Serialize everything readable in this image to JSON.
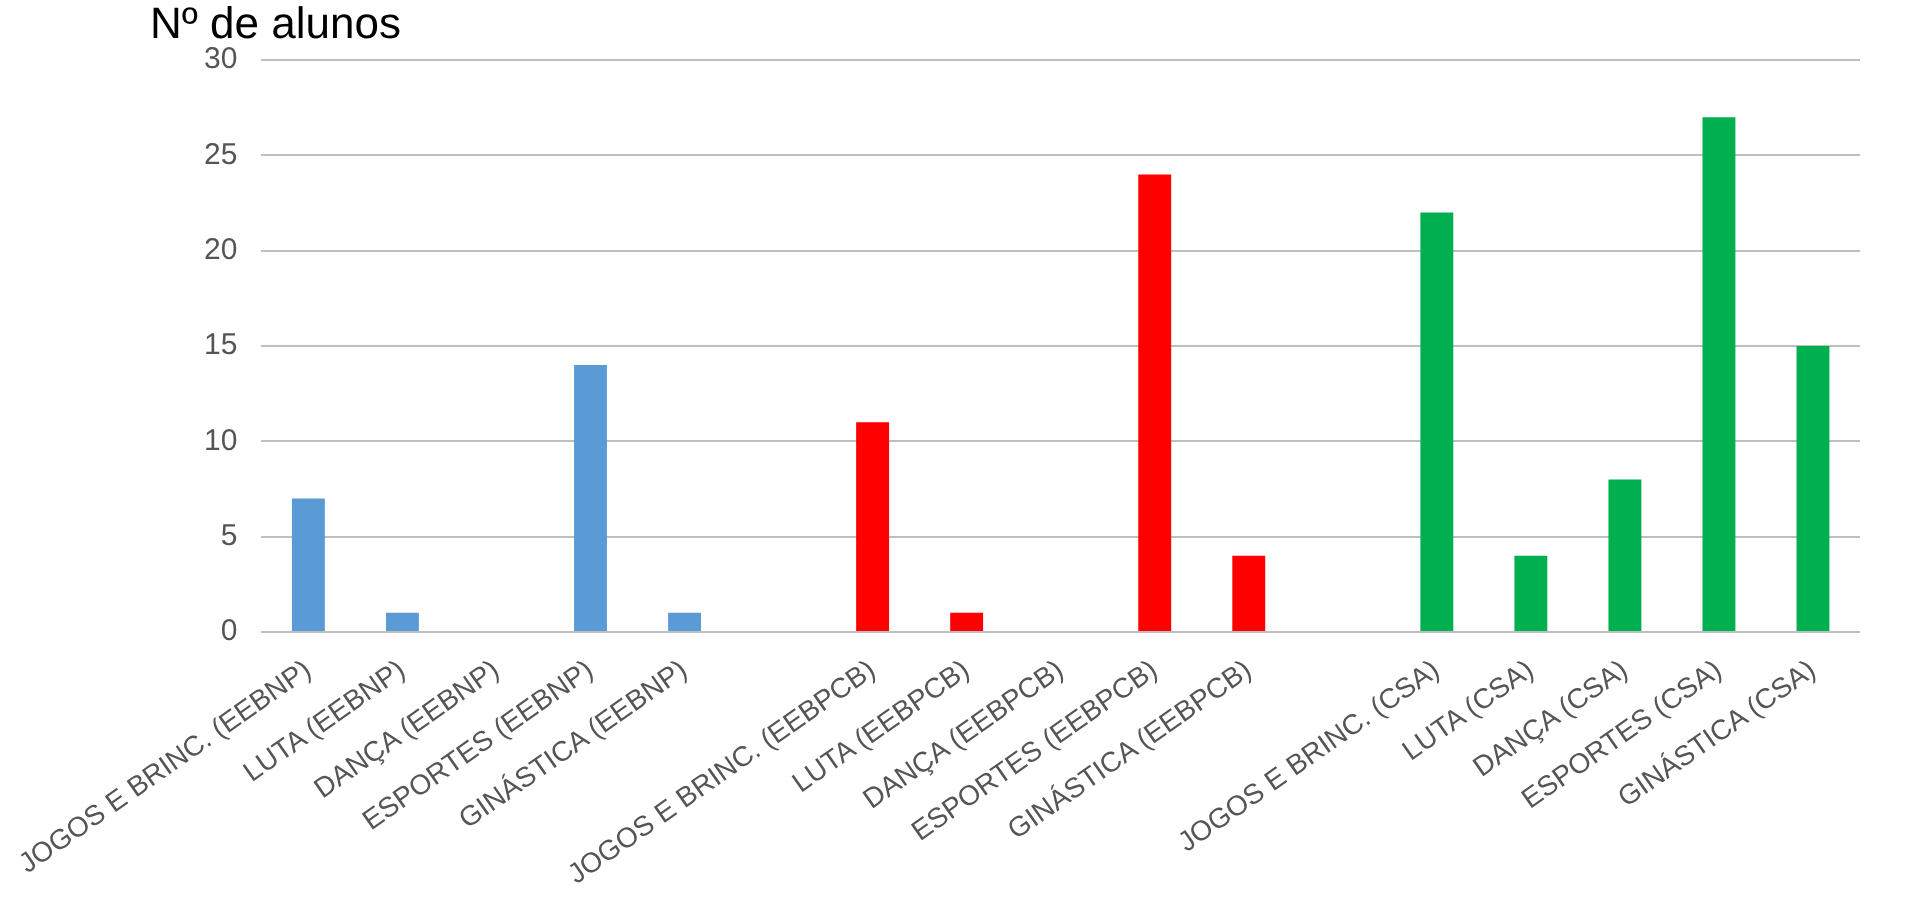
{
  "chart_data": {
    "type": "bar",
    "ylabel": "Nº de alunos",
    "categories": [
      "JOGOS E BRINC. (EEBNP)",
      "LUTA (EEBNP)",
      "DANÇA (EEBNP)",
      "ESPORTES (EEBNP)",
      "GINÁSTICA (EEBNP)",
      null,
      "JOGOS E BRINC. (EEBPCB)",
      "LUTA (EEBPCB)",
      "DANÇA (EEBPCB)",
      "ESPORTES (EEBPCB)",
      "GINÁSTICA (EEBPCB)",
      null,
      "JOGOS E BRINC. (CSA)",
      "LUTA (CSA)",
      "DANÇA (CSA)",
      "ESPORTES (CSA)",
      "GINÁSTICA (CSA)"
    ],
    "values": [
      7,
      1,
      0,
      14,
      1,
      null,
      11,
      1,
      0,
      24,
      4,
      null,
      22,
      4,
      8,
      27,
      15
    ],
    "colors": [
      "#5b9bd5",
      "#5b9bd5",
      "#5b9bd5",
      "#5b9bd5",
      "#5b9bd5",
      "#ffffff",
      "#ff0000",
      "#ff0000",
      "#ff0000",
      "#ff0000",
      "#ff0000",
      "#ffffff",
      "#00b050",
      "#00b050",
      "#00b050",
      "#00b050",
      "#00b050"
    ],
    "ylim": [
      0,
      30
    ],
    "yticks": [
      0,
      5,
      10,
      15,
      20,
      25,
      30
    ],
    "grid": "y",
    "legend": false
  }
}
